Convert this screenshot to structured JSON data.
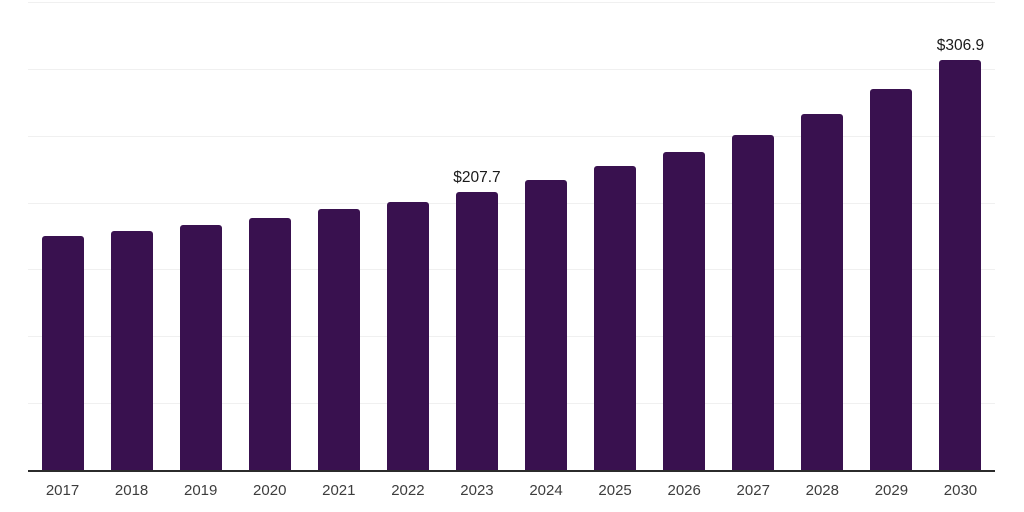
{
  "chart_data": {
    "type": "bar",
    "title": "",
    "xlabel": "",
    "ylabel": "",
    "categories": [
      "2017",
      "2018",
      "2019",
      "2020",
      "2021",
      "2022",
      "2023",
      "2024",
      "2025",
      "2026",
      "2027",
      "2028",
      "2029",
      "2030"
    ],
    "values": [
      175.1,
      178.9,
      183.5,
      188.7,
      195.4,
      200.3,
      207.7,
      217.0,
      227.1,
      237.5,
      250.7,
      266.4,
      284.7,
      306.9
    ],
    "annotations": [
      {
        "index": 6,
        "text": "$207.7"
      },
      {
        "index": 13,
        "text": "$306.9"
      }
    ],
    "ylim": [
      0,
      350
    ],
    "gridline_step": 50,
    "grid": true,
    "legend": false,
    "colors": {
      "bar": "#39114F",
      "axis_line": "#2b2b2b",
      "gridline": "#f0f0f0",
      "data_label": "#1a1a1a",
      "tick_label": "#3d3d3d",
      "background": "#ffffff"
    }
  }
}
